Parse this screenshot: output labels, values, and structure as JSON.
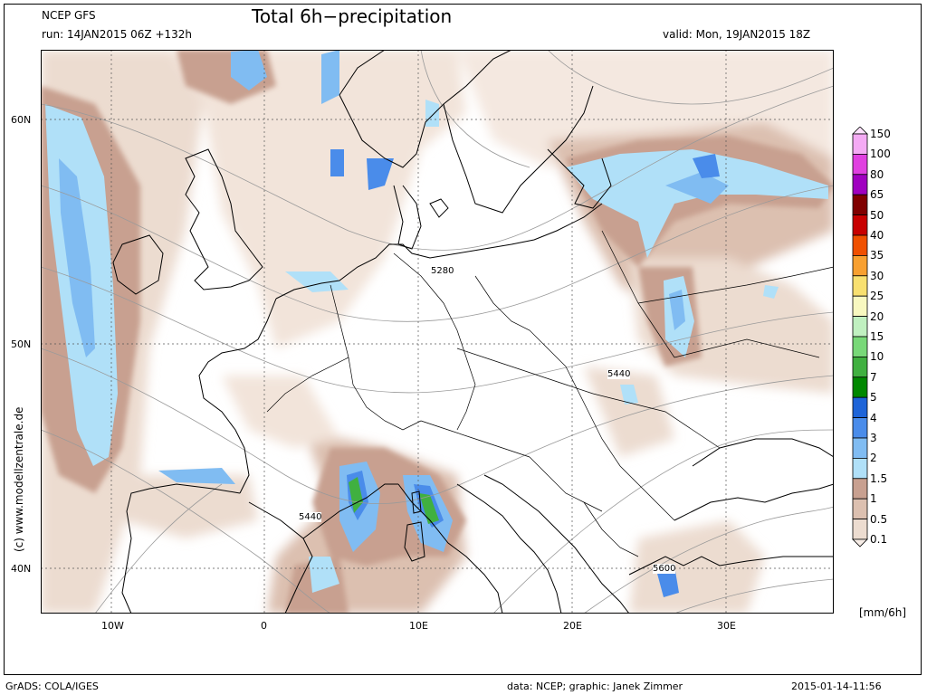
{
  "header": {
    "model": "NCEP GFS",
    "run": "run: 14JAN2015 06Z +132h",
    "title": "Total 6h−precipitation",
    "valid": "valid: Mon, 19JAN2015 18Z"
  },
  "footer": {
    "left": "GrADS: COLA/IGES",
    "mid": "data: NCEP; graphic: Janek Zimmer",
    "right": "2015-01-14-11:56"
  },
  "side_label": "(c) www.modellzentrale.de",
  "axes": {
    "lat_labels": [
      "60N",
      "50N",
      "40N"
    ],
    "lon_labels": [
      "10W",
      "0",
      "10E",
      "20E",
      "30E"
    ]
  },
  "contours": {
    "labels": [
      "5280",
      "5440",
      "5440",
      "5600"
    ]
  },
  "colorbar": {
    "unit": "[mm/6h]",
    "levels": [
      "150",
      "100",
      "80",
      "65",
      "50",
      "40",
      "35",
      "30",
      "25",
      "20",
      "15",
      "10",
      "7",
      "5",
      "4",
      "3",
      "2",
      "1.5",
      "1",
      "0.5",
      "0.1"
    ],
    "colors": [
      "#fde3fd",
      "#f4aaf4",
      "#e040e0",
      "#a000c0",
      "#800000",
      "#c80000",
      "#f05000",
      "#f8a030",
      "#f8e070",
      "#f8f8c0",
      "#c0f0c0",
      "#78d878",
      "#40b040",
      "#008800",
      "#1e64d8",
      "#4a8cea",
      "#80bcf2",
      "#b0e0f8",
      "#c8a090",
      "#dcc0b0",
      "#ecdcd0",
      "#f6ece6"
    ]
  }
}
